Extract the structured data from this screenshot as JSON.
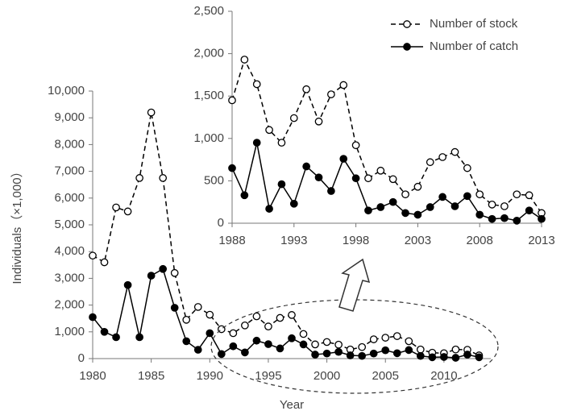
{
  "chart_data": [
    {
      "type": "line",
      "x_label": "Year",
      "y_label": "Individuals（×1,000）",
      "x": [
        1980,
        1981,
        1982,
        1983,
        1984,
        1985,
        1986,
        1987,
        1988,
        1989,
        1990,
        1991,
        1992,
        1993,
        1994,
        1995,
        1996,
        1997,
        1998,
        1999,
        2000,
        2001,
        2002,
        2003,
        2004,
        2005,
        2006,
        2007,
        2008,
        2009,
        2010,
        2011,
        2012,
        2013
      ],
      "xlim": [
        1980,
        2014
      ],
      "xticks": [
        1980,
        1985,
        1990,
        1995,
        2000,
        2005,
        2010
      ],
      "ylim": [
        0,
        10000
      ],
      "yticks": [
        0,
        {
          "value": 1000,
          "label": "1,000"
        },
        {
          "value": 2000,
          "label": "2,000"
        },
        {
          "value": 3000,
          "label": "3,000"
        },
        {
          "value": 4000,
          "label": "4,000"
        },
        {
          "value": 5000,
          "label": "5,000"
        },
        {
          "value": 6000,
          "label": "6,000"
        },
        {
          "value": 7000,
          "label": "7,000"
        },
        {
          "value": 8000,
          "label": "8,000"
        },
        {
          "value": 9000,
          "label": "9,000"
        },
        {
          "value": 10000,
          "label": "10,000"
        }
      ],
      "series": [
        {
          "color": "#000000",
          "line_style": "dashed",
          "marker_fill": "#ffffff",
          "values": [
            3850,
            3600,
            5650,
            5500,
            6750,
            9200,
            6750,
            3200,
            1450,
            1930,
            1640,
            1100,
            950,
            1240,
            1580,
            1200,
            1520,
            1630,
            920,
            530,
            620,
            520,
            340,
            430,
            720,
            780,
            840,
            650,
            340,
            220,
            200,
            340,
            330,
            120
          ]
        },
        {
          "color": "#000000",
          "line_style": "solid",
          "marker_fill": "#000000",
          "values": [
            1550,
            1000,
            800,
            2750,
            800,
            3100,
            3350,
            1900,
            650,
            330,
            950,
            170,
            460,
            230,
            670,
            540,
            380,
            760,
            530,
            150,
            190,
            250,
            120,
            100,
            190,
            310,
            200,
            320,
            100,
            50,
            60,
            30,
            150,
            50
          ]
        }
      ]
    },
    {
      "type": "line",
      "x": [
        1988,
        1989,
        1990,
        1991,
        1992,
        1993,
        1994,
        1995,
        1996,
        1997,
        1998,
        1999,
        2000,
        2001,
        2002,
        2003,
        2004,
        2005,
        2006,
        2007,
        2008,
        2009,
        2010,
        2011,
        2012,
        2013
      ],
      "xlim": [
        1988,
        2013
      ],
      "xticks": [
        1988,
        1993,
        1998,
        2003,
        2008,
        2013
      ],
      "ylim": [
        0,
        2500
      ],
      "yticks": [
        0,
        500,
        {
          "value": 1000,
          "label": "1,000"
        },
        {
          "value": 1500,
          "label": "1,500"
        },
        {
          "value": 2000,
          "label": "2,000"
        },
        {
          "value": 2500,
          "label": "2,500"
        }
      ],
      "series": [
        {
          "name": "Number of stock",
          "color": "#000000",
          "line_style": "dashed",
          "marker_fill": "#ffffff",
          "values": [
            1450,
            1930,
            1640,
            1100,
            950,
            1240,
            1580,
            1200,
            1520,
            1630,
            920,
            530,
            620,
            520,
            340,
            430,
            720,
            780,
            840,
            650,
            340,
            220,
            200,
            340,
            330,
            120
          ]
        },
        {
          "name": "Number of catch",
          "color": "#000000",
          "line_style": "solid",
          "marker_fill": "#000000",
          "values": [
            650,
            330,
            950,
            170,
            460,
            230,
            670,
            540,
            380,
            760,
            530,
            150,
            190,
            250,
            120,
            100,
            190,
            310,
            200,
            320,
            100,
            50,
            60,
            30,
            150,
            50
          ]
        }
      ]
    }
  ]
}
